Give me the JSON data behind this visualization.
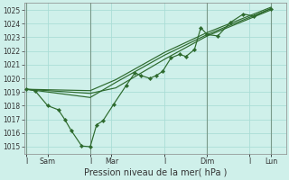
{
  "xlabel": "Pression niveau de la mer( hPa )",
  "background_color": "#cff0ea",
  "grid_color": "#aaddd6",
  "line_color": "#2d6a2d",
  "vline_color": "#7a9a8a",
  "ylim": [
    1014.5,
    1025.5
  ],
  "yticks": [
    1015,
    1016,
    1017,
    1018,
    1019,
    1020,
    1021,
    1022,
    1023,
    1024,
    1025
  ],
  "xtick_labels": [
    "I",
    "Sam",
    "I",
    "Mar",
    "I",
    "Dim",
    "I",
    "Lun"
  ],
  "xtick_positions": [
    0,
    1,
    3,
    4,
    6.5,
    8.5,
    10.5,
    11.5
  ],
  "vlines": [
    0,
    3,
    8.5,
    11.5
  ],
  "xlim": [
    -0.1,
    12.2
  ],
  "series_main": [
    [
      0.0,
      1019.2
    ],
    [
      0.4,
      1019.1
    ],
    [
      1.0,
      1018.0
    ],
    [
      1.5,
      1017.7
    ],
    [
      1.8,
      1017.0
    ],
    [
      2.1,
      1016.2
    ],
    [
      2.6,
      1015.05
    ],
    [
      3.0,
      1015.0
    ],
    [
      3.3,
      1016.6
    ],
    [
      3.6,
      1016.9
    ],
    [
      4.1,
      1018.1
    ],
    [
      4.7,
      1019.5
    ],
    [
      5.1,
      1020.4
    ],
    [
      5.4,
      1020.2
    ],
    [
      5.8,
      1020.0
    ],
    [
      6.1,
      1020.2
    ],
    [
      6.4,
      1020.5
    ],
    [
      6.8,
      1021.5
    ],
    [
      7.2,
      1021.75
    ],
    [
      7.5,
      1021.6
    ],
    [
      7.9,
      1022.1
    ],
    [
      8.2,
      1023.7
    ],
    [
      8.5,
      1023.2
    ],
    [
      9.0,
      1023.1
    ],
    [
      9.6,
      1024.1
    ],
    [
      10.2,
      1024.7
    ],
    [
      10.7,
      1024.55
    ],
    [
      11.5,
      1025.1
    ]
  ],
  "series_a": [
    [
      0.0,
      1019.2
    ],
    [
      3.0,
      1018.9
    ],
    [
      4.2,
      1019.3
    ],
    [
      6.5,
      1021.4
    ],
    [
      8.5,
      1023.1
    ],
    [
      11.5,
      1025.0
    ]
  ],
  "series_b": [
    [
      0.0,
      1019.2
    ],
    [
      3.0,
      1018.6
    ],
    [
      4.2,
      1019.7
    ],
    [
      6.5,
      1021.7
    ],
    [
      8.5,
      1023.2
    ],
    [
      11.5,
      1025.1
    ]
  ],
  "series_c": [
    [
      0.0,
      1019.2
    ],
    [
      3.0,
      1019.1
    ],
    [
      4.2,
      1019.9
    ],
    [
      6.5,
      1021.9
    ],
    [
      8.5,
      1023.35
    ],
    [
      11.5,
      1025.2
    ]
  ]
}
